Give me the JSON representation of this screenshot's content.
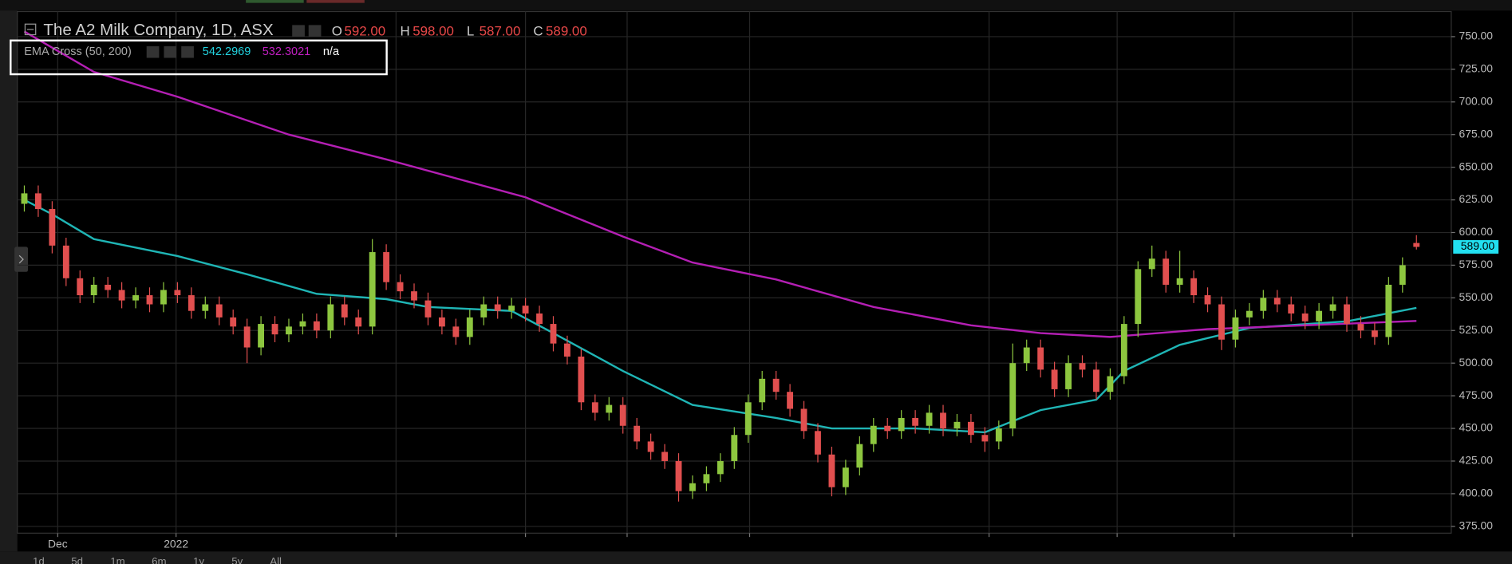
{
  "chart_data": {
    "type": "candlestick",
    "title": "The A2 Milk Company, 1D, ASX",
    "legend_fields": [
      "O",
      "H",
      "L",
      "C"
    ],
    "last_bar_labels": {
      "open": "592.00",
      "high": "598.00",
      "low": "587.00",
      "close": "589.00"
    },
    "indicator": {
      "label": "EMA Cross (50, 200)",
      "cross": "n/a"
    },
    "up_color": "#8dc63f",
    "down_color": "#e14f4f",
    "open": [
      622,
      630,
      618,
      590,
      565,
      552,
      560,
      556,
      548,
      552,
      545,
      556,
      552,
      540,
      545,
      535,
      528,
      512,
      530,
      522,
      528,
      532,
      525,
      545,
      535,
      528,
      585,
      562,
      555,
      548,
      535,
      528,
      520,
      535,
      545,
      540,
      544,
      538,
      530,
      515,
      505,
      470,
      462,
      468,
      452,
      440,
      432,
      425,
      402,
      408,
      415,
      425,
      445,
      470,
      488,
      478,
      465,
      448,
      430,
      405,
      420,
      438,
      452,
      448,
      458,
      452,
      462,
      450,
      455,
      445,
      440,
      450,
      500,
      512,
      495,
      480,
      500,
      495,
      478,
      490,
      530,
      572,
      580,
      560,
      565,
      552,
      545,
      518,
      535,
      540,
      550,
      545,
      538,
      532,
      540,
      545,
      530,
      525,
      520,
      560,
      592
    ],
    "high": [
      636,
      636,
      624,
      596,
      571,
      566,
      566,
      562,
      558,
      558,
      562,
      562,
      558,
      551,
      551,
      541,
      534,
      536,
      536,
      534,
      538,
      538,
      551,
      551,
      541,
      595,
      591,
      568,
      561,
      554,
      541,
      534,
      541,
      551,
      551,
      550,
      550,
      544,
      536,
      521,
      511,
      476,
      474,
      474,
      458,
      446,
      438,
      431,
      414,
      421,
      431,
      451,
      476,
      494,
      494,
      484,
      471,
      454,
      436,
      426,
      444,
      458,
      458,
      464,
      464,
      468,
      468,
      461,
      461,
      451,
      456,
      515,
      518,
      518,
      501,
      506,
      506,
      501,
      496,
      536,
      578,
      590,
      586,
      586,
      571,
      558,
      551,
      541,
      546,
      556,
      556,
      551,
      544,
      546,
      551,
      551,
      536,
      531,
      566,
      581,
      598
    ],
    "low": [
      616,
      612,
      584,
      559,
      546,
      546,
      550,
      542,
      542,
      539,
      539,
      546,
      534,
      534,
      529,
      522,
      500,
      506,
      516,
      516,
      522,
      519,
      519,
      529,
      522,
      522,
      556,
      549,
      542,
      529,
      522,
      514,
      514,
      529,
      534,
      534,
      532,
      524,
      509,
      499,
      464,
      456,
      456,
      446,
      434,
      426,
      419,
      394,
      396,
      402,
      409,
      419,
      439,
      464,
      472,
      459,
      442,
      424,
      398,
      399,
      414,
      432,
      442,
      442,
      446,
      446,
      444,
      444,
      439,
      432,
      434,
      444,
      494,
      489,
      474,
      474,
      489,
      472,
      472,
      484,
      520,
      566,
      554,
      554,
      546,
      539,
      510,
      512,
      529,
      534,
      539,
      532,
      526,
      526,
      534,
      524,
      519,
      514,
      514,
      554,
      587
    ],
    "close": [
      630,
      618,
      590,
      565,
      552,
      560,
      556,
      548,
      552,
      545,
      556,
      552,
      540,
      545,
      535,
      528,
      512,
      530,
      522,
      528,
      532,
      525,
      545,
      535,
      528,
      585,
      562,
      555,
      548,
      535,
      528,
      520,
      535,
      545,
      540,
      544,
      538,
      530,
      515,
      505,
      470,
      462,
      468,
      452,
      440,
      432,
      425,
      402,
      408,
      415,
      425,
      445,
      470,
      488,
      478,
      465,
      448,
      430,
      405,
      420,
      438,
      452,
      448,
      458,
      452,
      462,
      450,
      455,
      445,
      440,
      450,
      500,
      512,
      495,
      480,
      500,
      495,
      478,
      490,
      530,
      572,
      580,
      560,
      565,
      552,
      545,
      518,
      535,
      540,
      550,
      545,
      538,
      532,
      540,
      545,
      530,
      525,
      520,
      560,
      575,
      589
    ],
    "series": [
      {
        "color": "#1fb5b5",
        "x": [
          0,
          2,
          5,
          11,
          16,
          21,
          26,
          29,
          35,
          38,
          43,
          48,
          54,
          58,
          64,
          69,
          73,
          77,
          79,
          83,
          88,
          95,
          100
        ],
        "values": [
          625,
          614,
          595,
          582,
          568,
          553,
          549,
          543,
          540,
          523,
          494,
          468,
          458,
          450,
          450,
          447,
          464,
          472,
          494,
          514,
          527,
          532,
          542.2969
        ]
      },
      {
        "color": "#b41fb4",
        "x": [
          0,
          5,
          11,
          19,
          26,
          36,
          43,
          48,
          54,
          61,
          68,
          73,
          78,
          85,
          92,
          100
        ],
        "values": [
          754,
          723,
          704,
          675,
          656,
          627,
          597,
          577,
          564,
          543,
          529,
          523,
          520,
          526,
          529,
          532.3021
        ]
      }
    ],
    "xlim": [
      -0.5,
      102.5
    ],
    "xticks": [
      {
        "value": 2.4,
        "label": "Dec"
      },
      {
        "value": 10.9,
        "label": "2022"
      },
      {
        "value": 26.7,
        "label": null
      },
      {
        "value": 36.0,
        "label": null
      },
      {
        "value": 43.3,
        "label": null
      },
      {
        "value": 52.1,
        "label": null
      },
      {
        "value": 69.3,
        "label": null
      },
      {
        "value": 78.5,
        "label": null
      },
      {
        "value": 86.9,
        "label": null
      },
      {
        "value": 95.4,
        "label": null
      }
    ],
    "ylim": [
      369.8,
      769.2
    ],
    "yticks": [
      {
        "value": 375,
        "label": "375.00"
      },
      {
        "value": 400,
        "label": "400.00"
      },
      {
        "value": 425,
        "label": "425.00"
      },
      {
        "value": 450,
        "label": "450.00"
      },
      {
        "value": 475,
        "label": "475.00"
      },
      {
        "value": 500,
        "label": "500.00"
      },
      {
        "value": 525,
        "label": "525.00"
      },
      {
        "value": 550,
        "label": "550.00"
      },
      {
        "value": 575,
        "label": "575.00"
      },
      {
        "value": 600,
        "label": "600.00"
      },
      {
        "value": 625,
        "label": "625.00"
      },
      {
        "value": 650,
        "label": "650.00"
      },
      {
        "value": 675,
        "label": "675.00"
      },
      {
        "value": 700,
        "label": "700.00"
      },
      {
        "value": 725,
        "label": "725.00"
      },
      {
        "value": 750,
        "label": "750.00"
      }
    ],
    "grid": true
  },
  "toolbar": {
    "ranges": [
      "1d",
      "5d",
      "1m",
      "6m",
      "1y",
      "5y",
      "All"
    ]
  }
}
